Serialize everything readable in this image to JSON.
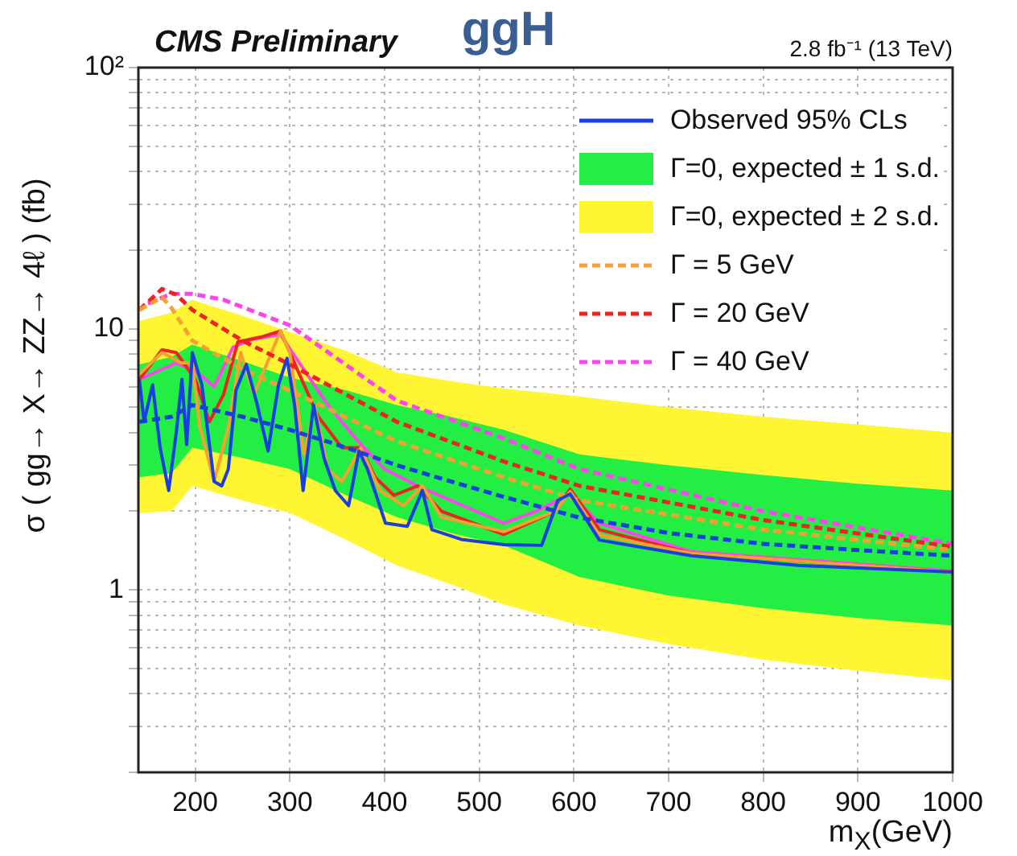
{
  "chart_data": {
    "type": "line",
    "title": "ggH",
    "xlabel": "m$_{X}$(GeV)",
    "ylabel": "σ ( gg→ X→ ZZ→ 4ℓ ) (fb)",
    "annotations": [
      "CMS Preliminary",
      "2.8 fb⁻¹ (13 TeV)"
    ],
    "xlim": [
      140,
      1000
    ],
    "xticks": [
      200,
      300,
      400,
      500,
      600,
      700,
      800,
      900,
      1000
    ],
    "ylim": [
      0.2,
      100
    ],
    "log": "y",
    "yticks": [
      {
        "value": 0.2,
        "label": null
      },
      {
        "value": 0.3,
        "label": null
      },
      {
        "value": 0.4,
        "label": null
      },
      {
        "value": 0.5,
        "label": null
      },
      {
        "value": 0.6,
        "label": null
      },
      {
        "value": 0.7,
        "label": null
      },
      {
        "value": 0.8,
        "label": null
      },
      {
        "value": 0.9,
        "label": null
      },
      1,
      {
        "value": 2,
        "label": null
      },
      {
        "value": 3,
        "label": null
      },
      {
        "value": 4,
        "label": null
      },
      {
        "value": 5,
        "label": null
      },
      {
        "value": 6,
        "label": null
      },
      {
        "value": 7,
        "label": null
      },
      {
        "value": 8,
        "label": null
      },
      {
        "value": 9,
        "label": null
      },
      10,
      {
        "value": 20,
        "label": null
      },
      {
        "value": 30,
        "label": null
      },
      {
        "value": 40,
        "label": null
      },
      {
        "value": 50,
        "label": null
      },
      {
        "value": 60,
        "label": null
      },
      {
        "value": 70,
        "label": null
      },
      {
        "value": 80,
        "label": null
      },
      {
        "value": 90,
        "label": null
      },
      {
        "value": 100,
        "label": "10²"
      }
    ],
    "grid": true,
    "legend": "top right",
    "marker": "none",
    "series": [
      {
        "name": "Observed 95% CLs",
        "color": "#1a3fe0",
        "line_style": "solid",
        "x": [
          141,
          146,
          155,
          163,
          172,
          180,
          186,
          191,
          197,
          207,
          220,
          228,
          235,
          243,
          254,
          265,
          277,
          288,
          297,
          305,
          314,
          325,
          336,
          348,
          362,
          373,
          382,
          401,
          424,
          440,
          450,
          481,
          526,
          566,
          583,
          596,
          627,
          724,
          837,
          1000
        ],
        "values": [
          6.4,
          4.4,
          6.1,
          3.5,
          2.4,
          4.0,
          6.4,
          3.6,
          8.1,
          6.1,
          2.6,
          2.5,
          2.9,
          5.8,
          7.3,
          5.2,
          3.4,
          6.1,
          7.7,
          5.1,
          2.4,
          5.1,
          3.2,
          2.4,
          2.1,
          3.4,
          2.9,
          1.8,
          1.75,
          2.4,
          1.7,
          1.56,
          1.49,
          1.48,
          2.2,
          2.33,
          1.55,
          1.35,
          1.24,
          1.17
        ]
      },
      {
        "name": "Γ=0, expected ± 1 s.d.",
        "color": "#22ee44",
        "line_style": "dashed",
        "x": [
          141,
          175,
          197,
          250,
          300,
          360,
          413,
          470,
          526,
          606,
          700,
          800,
          900,
          1000
        ],
        "values": [
          null,
          null,
          null,
          null,
          null,
          null,
          null,
          null,
          null,
          null,
          null,
          null,
          null,
          null
        ],
        "lower": [
          2.7,
          2.8,
          3.5,
          3.2,
          2.9,
          2.3,
          1.9,
          1.65,
          1.48,
          1.12,
          0.95,
          0.85,
          0.78,
          0.73
        ],
        "upper": [
          7.3,
          7.8,
          8.7,
          7.5,
          6.5,
          5.8,
          5.1,
          4.6,
          4.1,
          3.3,
          3.0,
          2.75,
          2.55,
          2.4
        ]
      },
      {
        "name": "Γ=0, expected ± 2 s.d.",
        "color": "#fff533",
        "line_style": "dashed",
        "x": [
          141,
          175,
          197,
          250,
          300,
          360,
          413,
          470,
          526,
          606,
          700,
          800,
          900,
          1000
        ],
        "values": [
          null,
          null,
          null,
          null,
          null,
          null,
          null,
          null,
          null,
          null,
          null,
          null,
          null,
          null
        ],
        "lower": [
          1.97,
          2.0,
          2.5,
          2.2,
          1.97,
          1.55,
          1.24,
          1.05,
          0.88,
          0.73,
          0.62,
          0.54,
          0.49,
          0.45
        ],
        "upper": [
          10.7,
          11.5,
          12.9,
          11.2,
          9.7,
          8.2,
          6.8,
          6.3,
          5.9,
          5.5,
          5.0,
          4.6,
          4.3,
          4.0
        ]
      },
      {
        "name": "Γ = 5 GeV",
        "color": "#f5a030",
        "line_style": "dashed",
        "x": [
          141,
          165,
          175,
          197,
          250,
          300,
          413,
          526,
          606,
          800,
          1000
        ],
        "values": [
          11.8,
          13.2,
          12.0,
          9.0,
          7.0,
          5.8,
          3.7,
          2.7,
          2.2,
          1.7,
          1.42
        ]
      },
      {
        "name": "Γ = 20 GeV",
        "color": "#ee2222",
        "line_style": "dashed",
        "x": [
          141,
          165,
          180,
          197,
          250,
          300,
          413,
          526,
          606,
          800,
          1000
        ],
        "values": [
          11.8,
          14.2,
          13.5,
          11.8,
          9.0,
          7.3,
          4.4,
          3.1,
          2.5,
          1.85,
          1.46
        ]
      },
      {
        "name": "Γ = 40 GeV",
        "color": "#ff44ee",
        "line_style": "dashed",
        "x": [
          150,
          175,
          197,
          230,
          300,
          413,
          526,
          606,
          800,
          1000
        ],
        "values": [
          12.5,
          13.6,
          13.6,
          12.9,
          10.3,
          5.3,
          3.8,
          2.9,
          2.0,
          1.5
        ]
      },
      {
        "color": "#1a3fe0",
        "line_style": "dashed",
        "x": [
          141,
          175,
          197,
          250,
          300,
          360,
          413,
          470,
          526,
          606,
          700,
          800,
          900,
          1000
        ],
        "values": [
          4.4,
          4.6,
          5.1,
          4.6,
          4.1,
          3.5,
          3.0,
          2.6,
          2.27,
          1.89,
          1.65,
          1.5,
          1.42,
          1.35
        ]
      },
      {
        "color": "#f5a030",
        "line_style": "solid",
        "x": [
          141,
          165,
          185,
          197,
          205,
          220,
          235,
          248,
          262,
          278,
          290,
          300,
          315,
          326,
          340,
          355,
          375,
          395,
          420,
          440,
          460,
          526,
          580,
          596,
          627,
          724,
          1000
        ],
        "values": [
          6.7,
          8.1,
          7.4,
          7.4,
          4.2,
          2.6,
          4.2,
          8.1,
          5.6,
          7.7,
          9.8,
          8.1,
          3.3,
          5.1,
          2.9,
          2.6,
          3.5,
          2.4,
          2.1,
          2.5,
          1.9,
          1.67,
          2.0,
          2.38,
          1.62,
          1.38,
          1.17
        ]
      },
      {
        "color": "#ee2222",
        "line_style": "solid",
        "x": [
          141,
          165,
          180,
          200,
          215,
          230,
          245,
          270,
          290,
          310,
          330,
          355,
          375,
          390,
          410,
          435,
          460,
          526,
          580,
          596,
          627,
          724,
          1000
        ],
        "values": [
          6.4,
          8.3,
          8.1,
          6.4,
          4.4,
          5.6,
          8.9,
          9.3,
          9.8,
          6.7,
          4.6,
          3.5,
          3.5,
          2.7,
          2.3,
          2.5,
          2.0,
          1.63,
          2.0,
          2.43,
          1.7,
          1.38,
          1.17
        ]
      },
      {
        "color": "#ff44ee",
        "line_style": "solid",
        "x": [
          141,
          180,
          200,
          220,
          240,
          260,
          290,
          310,
          340,
          375,
          400,
          435,
          470,
          526,
          560,
          596,
          627,
          724,
          1000
        ],
        "values": [
          6.4,
          7.4,
          6.9,
          6.0,
          8.5,
          9.1,
          9.5,
          7.4,
          5.1,
          3.6,
          2.9,
          2.5,
          2.2,
          1.8,
          2.0,
          2.33,
          1.8,
          1.4,
          1.18
        ]
      }
    ]
  }
}
